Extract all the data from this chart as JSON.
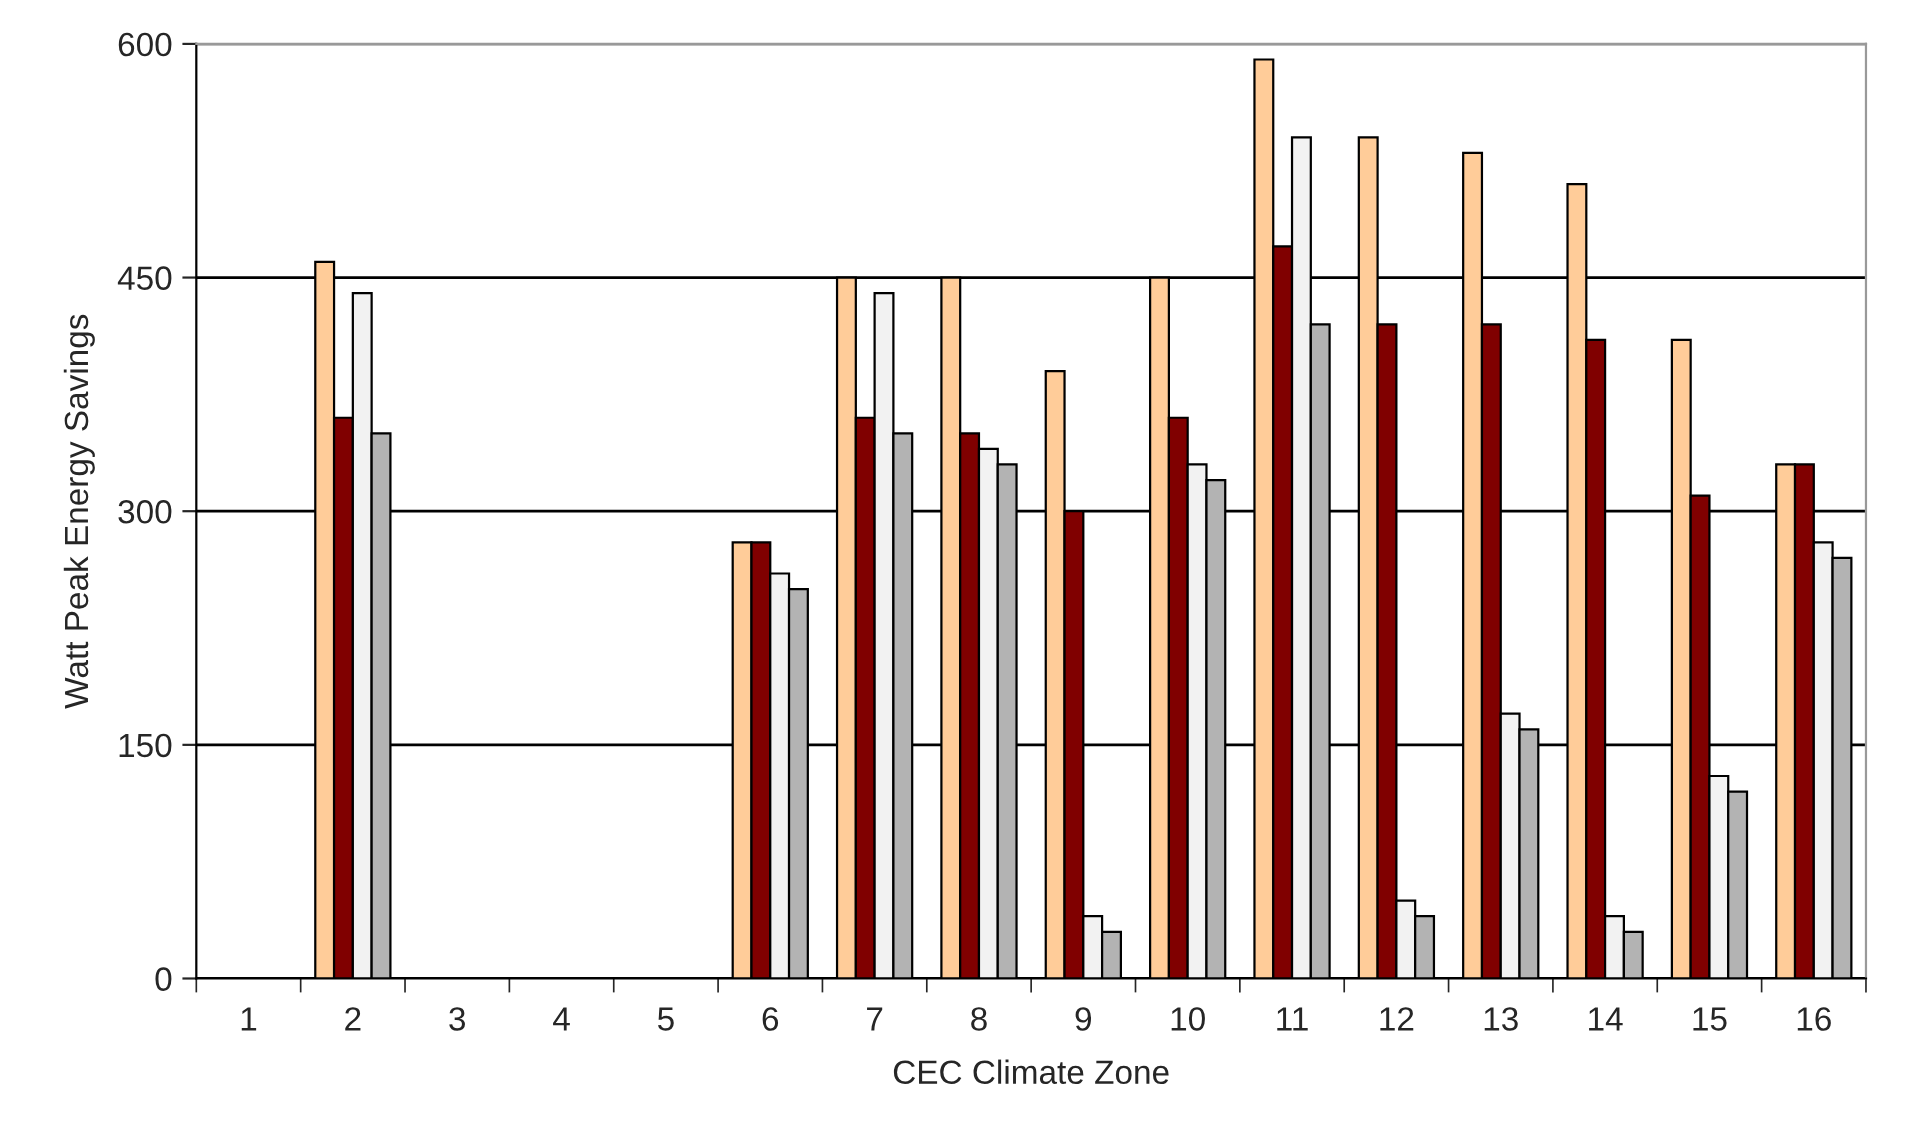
{
  "chart_data": {
    "type": "bar",
    "xlabel": "CEC Climate Zone",
    "ylabel": "Watt Peak Energy Savings",
    "categories": [
      "1",
      "2",
      "3",
      "4",
      "5",
      "6",
      "7",
      "8",
      "9",
      "10",
      "11",
      "12",
      "13",
      "14",
      "15",
      "16"
    ],
    "series": [
      {
        "color": "#ffcc99",
        "values": [
          null,
          460,
          null,
          null,
          null,
          280,
          450,
          450,
          390,
          450,
          590,
          540,
          530,
          510,
          410,
          330
        ]
      },
      {
        "color": "#800000",
        "values": [
          null,
          360,
          null,
          null,
          null,
          280,
          360,
          350,
          300,
          360,
          470,
          420,
          420,
          410,
          310,
          330
        ]
      },
      {
        "color": "#f2f2f2",
        "values": [
          null,
          440,
          null,
          null,
          null,
          260,
          440,
          340,
          40,
          330,
          540,
          50,
          170,
          40,
          130,
          280
        ]
      },
      {
        "color": "#b3b3b3",
        "values": [
          null,
          350,
          null,
          null,
          null,
          250,
          350,
          330,
          30,
          320,
          420,
          40,
          160,
          30,
          120,
          270
        ]
      }
    ],
    "ylim": [
      0,
      600
    ],
    "yticks": [
      0,
      150,
      300,
      450,
      600
    ],
    "grid": "y",
    "legend": false
  }
}
